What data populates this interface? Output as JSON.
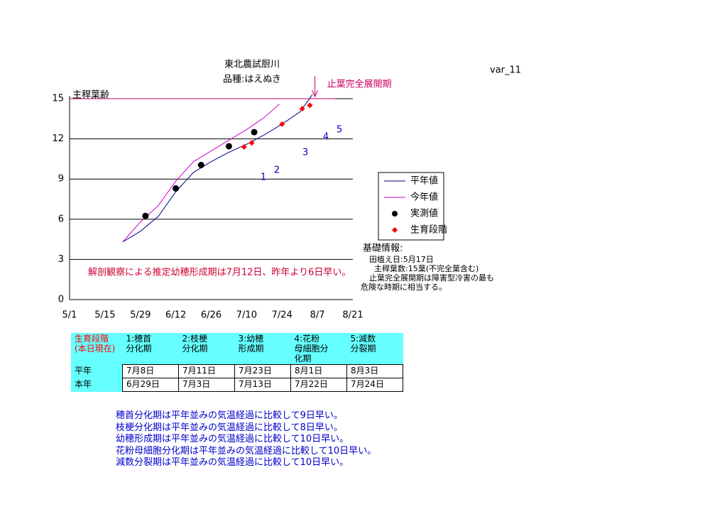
{
  "version": "var_11",
  "chart_data": {
    "type": "line",
    "title": [
      "東北農試厨川",
      "品種:はえぬき"
    ],
    "y_label": "主稈葉齢",
    "xlim": [
      "5/1",
      "8/21"
    ],
    "xticks": [
      "5/1",
      "5/15",
      "5/29",
      "6/12",
      "6/26",
      "7/10",
      "7/24",
      "8/7",
      "8/21"
    ],
    "ylim": [
      0,
      15
    ],
    "yticks": [
      0,
      3,
      6,
      9,
      12,
      15
    ],
    "grid": true,
    "series": [
      {
        "name": "平年値",
        "color": "#000080",
        "kind": "line",
        "x": [
          "5/22",
          "5/29",
          "6/5",
          "6/12",
          "6/19",
          "6/26",
          "7/3",
          "7/10",
          "7/17",
          "7/24",
          "7/31",
          "8/5"
        ],
        "values": [
          4.3,
          5.1,
          6.2,
          8.05,
          9.5,
          10.3,
          11.0,
          11.6,
          12.3,
          13.1,
          14.0,
          15.3
        ]
      },
      {
        "name": "今年値",
        "color": "#cc00cc",
        "kind": "line",
        "x": [
          "5/22",
          "5/29",
          "6/5",
          "6/12",
          "6/19",
          "6/26",
          "7/3",
          "7/10",
          "7/17",
          "7/23"
        ],
        "values": [
          4.3,
          5.8,
          7.0,
          8.85,
          10.3,
          11.1,
          11.9,
          12.7,
          13.6,
          14.6
        ]
      },
      {
        "name": "実測値",
        "color": "#000000",
        "kind": "dot",
        "x": [
          "5/31",
          "6/12",
          "6/22",
          "7/3",
          "7/13"
        ],
        "values": [
          6.25,
          8.3,
          10.05,
          11.45,
          12.5
        ]
      },
      {
        "name": "生育段階",
        "color": "#ff0000",
        "kind": "diamond",
        "x": [
          "7/9",
          "7/12",
          "7/24",
          "8/1",
          "8/4"
        ],
        "values": [
          11.4,
          11.7,
          13.1,
          14.25,
          14.5
        ]
      }
    ],
    "hline": {
      "value": 15,
      "color": "#cc0066",
      "label": "止葉完全展開期",
      "arrow_x": "8/6"
    },
    "stage_markers": [
      "1",
      "2",
      "3",
      "4",
      "5"
    ],
    "annotation": "解剖観察による推定幼穂形成期は7月12日、昨年より6日早い。"
  },
  "info": [
    "基礎情報:",
    "田植え日:5月17日",
    "主稈葉数:15葉(不完全葉含む)",
    "止葉完全展開期は障害型冷害の最も",
    "危険な時期に相当する。"
  ],
  "table": {
    "header": [
      "生育段階\n(本日現在)",
      "1:穂首\n分化期",
      "2:枝梗\n分化期",
      "3:幼穂\n形成期",
      "4:花粉\n母細胞分\n化期",
      "5:減数\n分裂期"
    ],
    "rows": [
      [
        "平年",
        "7月8日",
        "7月11日",
        "7月23日",
        "8月1日",
        "8月3日"
      ],
      [
        "本年",
        "6月29日",
        "7月3日",
        "7月13日",
        "7月22日",
        "7月24日"
      ]
    ]
  },
  "notes": [
    "穂首分化期は平年並みの気温経過に比較して9日早い。",
    "枝梗分化期は平年並みの気温経過に比較して8日早い。",
    "幼穂形成期は平年並みの気温経過に比較して10日早い。",
    "花粉母細胞分化期は平年並みの気温経過に比較して10日早い。",
    "減数分裂期は平年並みの気温経過に比較して10日早い。"
  ]
}
